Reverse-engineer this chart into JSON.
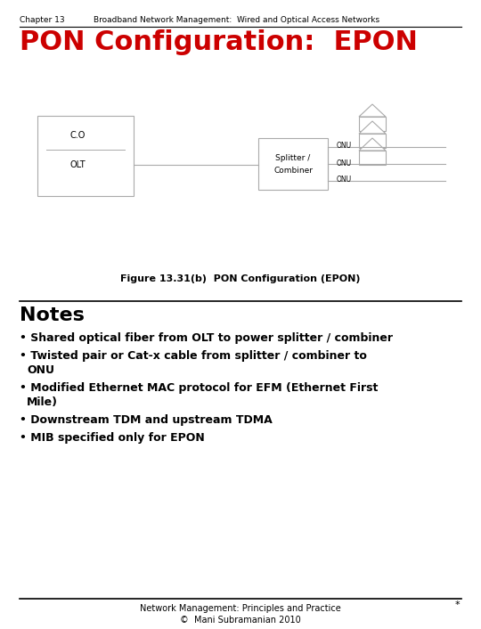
{
  "bg_color": "#ffffff",
  "header_chapter": "Chapter 13",
  "header_title": "Broadband Network Management:  Wired and Optical Access Networks",
  "slide_title": "PON Configuration:  EPON",
  "figure_caption": "Figure 13.31(b)  PON Configuration (EPON)",
  "notes_title": "Notes",
  "bullet_points": [
    "Shared optical fiber from OLT to power splitter / combiner",
    "Twisted pair or Cat-x cable from splitter / combiner to\n  ONU",
    "Modified Ethernet MAC protocol for EFM (Ethernet First\n  Mile)",
    "Downstream TDM and upstream TDMA",
    "MIB specified only for EPON"
  ],
  "footer_line1": "Network Management: Principles and Practice",
  "footer_line2": "©  Mani Subramanian 2010",
  "title_color": "#cc0000",
  "text_color": "#000000",
  "diagram_line_color": "#aaaaaa",
  "diagram_box_edge": "#aaaaaa"
}
